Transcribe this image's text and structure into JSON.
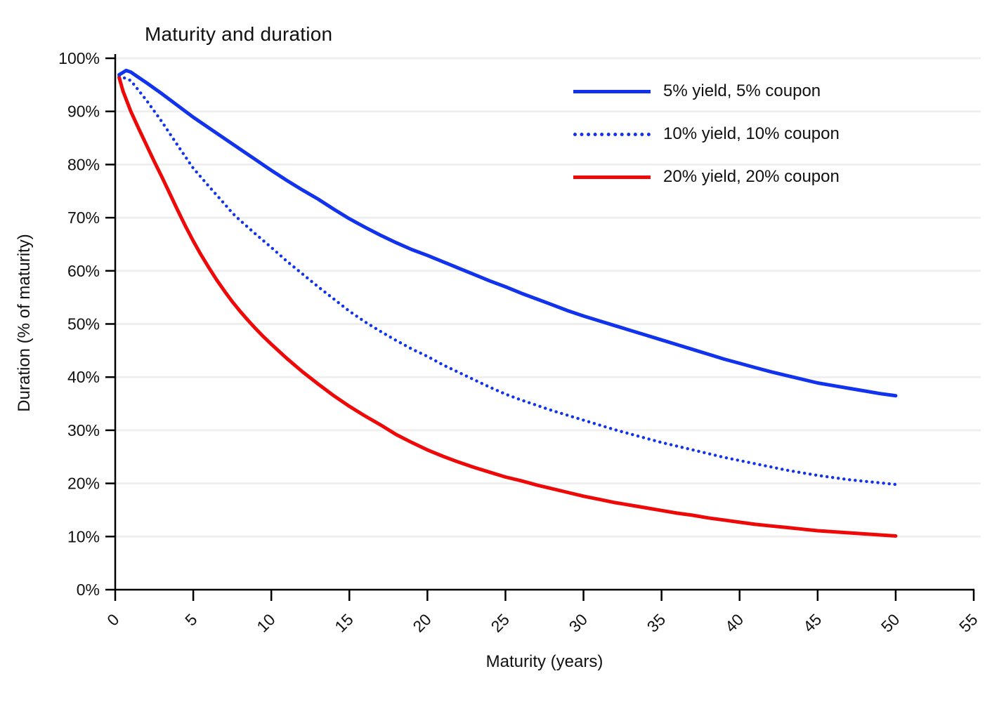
{
  "title": "Maturity and duration",
  "colors": {
    "blue": "#1133ee",
    "red": "#ee0808",
    "grid": "#efefef",
    "axis": "#000000",
    "text": "#111111",
    "background": "#ffffff"
  },
  "chart_data": {
    "type": "line",
    "title": "Maturity and duration",
    "xlabel": "Maturity (years)",
    "ylabel": "Duration (% of maturity)",
    "xlim": [
      0,
      55
    ],
    "ylim": [
      0,
      100
    ],
    "x_ticks": [
      0,
      5,
      10,
      15,
      20,
      25,
      30,
      35,
      40,
      45,
      50,
      55
    ],
    "y_ticks": [
      0,
      10,
      20,
      30,
      40,
      50,
      60,
      70,
      80,
      90,
      100
    ],
    "y_tick_labels": [
      "0%",
      "10%",
      "20%",
      "30%",
      "40%",
      "50%",
      "60%",
      "70%",
      "80%",
      "90%",
      "100%"
    ],
    "grid": "horizontal",
    "legend_position": "upper right",
    "series": [
      {
        "name": "5% yield, 5% coupon",
        "color": "#1133ee",
        "style": "solid",
        "points": [
          [
            0.25,
            96.9
          ],
          [
            0.7,
            97.7
          ],
          [
            1,
            97.4
          ],
          [
            1.5,
            96.4
          ],
          [
            2,
            95.4
          ],
          [
            3,
            93.3
          ],
          [
            4,
            91.1
          ],
          [
            5,
            88.9
          ],
          [
            6,
            86.9
          ],
          [
            7,
            84.9
          ],
          [
            8,
            82.9
          ],
          [
            9,
            80.9
          ],
          [
            10,
            78.9
          ],
          [
            11,
            77.0
          ],
          [
            12,
            75.2
          ],
          [
            13,
            73.5
          ],
          [
            14,
            71.6
          ],
          [
            15,
            69.8
          ],
          [
            16,
            68.2
          ],
          [
            17,
            66.7
          ],
          [
            18,
            65.3
          ],
          [
            19,
            64.0
          ],
          [
            20,
            62.9
          ],
          [
            21,
            61.7
          ],
          [
            22,
            60.5
          ],
          [
            23,
            59.3
          ],
          [
            24,
            58.1
          ],
          [
            25,
            57.0
          ],
          [
            26,
            55.8
          ],
          [
            27,
            54.7
          ],
          [
            28,
            53.6
          ],
          [
            29,
            52.5
          ],
          [
            30,
            51.5
          ],
          [
            31,
            50.6
          ],
          [
            32,
            49.7
          ],
          [
            33,
            48.8
          ],
          [
            34,
            47.9
          ],
          [
            35,
            47.0
          ],
          [
            36,
            46.1
          ],
          [
            37,
            45.2
          ],
          [
            38,
            44.3
          ],
          [
            39,
            43.4
          ],
          [
            40,
            42.6
          ],
          [
            41,
            41.8
          ],
          [
            42,
            41.0
          ],
          [
            43,
            40.3
          ],
          [
            44,
            39.6
          ],
          [
            45,
            38.9
          ],
          [
            46,
            38.4
          ],
          [
            47,
            37.9
          ],
          [
            48,
            37.4
          ],
          [
            49,
            36.9
          ],
          [
            50,
            36.5
          ]
        ]
      },
      {
        "name": "10% yield, 10% coupon",
        "color": "#1133ee",
        "style": "dotted",
        "points": [
          [
            0.25,
            96.7
          ],
          [
            1,
            95.8
          ],
          [
            2,
            92.1
          ],
          [
            3,
            88.0
          ],
          [
            4,
            83.6
          ],
          [
            5,
            79.3
          ],
          [
            6,
            75.9
          ],
          [
            7,
            72.6
          ],
          [
            7.5,
            70.9
          ],
          [
            8,
            69.5
          ],
          [
            9,
            66.9
          ],
          [
            10,
            64.4
          ],
          [
            11,
            61.8
          ],
          [
            12,
            59.4
          ],
          [
            13,
            57.0
          ],
          [
            14,
            54.7
          ],
          [
            15,
            52.4
          ],
          [
            16,
            50.4
          ],
          [
            17,
            48.6
          ],
          [
            18,
            46.9
          ],
          [
            19,
            45.3
          ],
          [
            20,
            43.9
          ],
          [
            21,
            42.3
          ],
          [
            22,
            40.9
          ],
          [
            23,
            39.5
          ],
          [
            24,
            38.1
          ],
          [
            25,
            36.8
          ],
          [
            26,
            35.7
          ],
          [
            27,
            34.7
          ],
          [
            28,
            33.7
          ],
          [
            29,
            32.8
          ],
          [
            30,
            31.9
          ],
          [
            31,
            31.0
          ],
          [
            32,
            30.1
          ],
          [
            33,
            29.3
          ],
          [
            34,
            28.5
          ],
          [
            35,
            27.7
          ],
          [
            36,
            27.0
          ],
          [
            37,
            26.3
          ],
          [
            38,
            25.6
          ],
          [
            39,
            24.9
          ],
          [
            40,
            24.3
          ],
          [
            41,
            23.7
          ],
          [
            42,
            23.1
          ],
          [
            43,
            22.5
          ],
          [
            44,
            22.0
          ],
          [
            45,
            21.5
          ],
          [
            46,
            21.1
          ],
          [
            47,
            20.7
          ],
          [
            48,
            20.4
          ],
          [
            49,
            20.1
          ],
          [
            50,
            19.8
          ]
        ]
      },
      {
        "name": "20% yield, 20% coupon",
        "color": "#ee0808",
        "style": "solid",
        "points": [
          [
            0.25,
            96.4
          ],
          [
            0.5,
            93.8
          ],
          [
            1,
            90.0
          ],
          [
            1.5,
            86.8
          ],
          [
            2,
            83.7
          ],
          [
            2.5,
            80.6
          ],
          [
            3,
            77.6
          ],
          [
            3.5,
            74.5
          ],
          [
            4,
            71.4
          ],
          [
            4.5,
            68.4
          ],
          [
            5,
            65.6
          ],
          [
            5.5,
            63.0
          ],
          [
            6,
            60.6
          ],
          [
            6.5,
            58.3
          ],
          [
            7,
            56.2
          ],
          [
            7.5,
            54.2
          ],
          [
            8,
            52.4
          ],
          [
            8.5,
            50.7
          ],
          [
            9,
            49.1
          ],
          [
            9.5,
            47.6
          ],
          [
            10,
            46.2
          ],
          [
            11,
            43.5
          ],
          [
            12,
            41.0
          ],
          [
            13,
            38.7
          ],
          [
            14,
            36.5
          ],
          [
            15,
            34.5
          ],
          [
            16,
            32.7
          ],
          [
            17,
            31.0
          ],
          [
            18,
            29.2
          ],
          [
            19,
            27.7
          ],
          [
            20,
            26.3
          ],
          [
            21,
            25.1
          ],
          [
            22,
            24.0
          ],
          [
            23,
            23.0
          ],
          [
            24,
            22.1
          ],
          [
            25,
            21.2
          ],
          [
            26,
            20.5
          ],
          [
            27,
            19.7
          ],
          [
            28,
            19.0
          ],
          [
            29,
            18.3
          ],
          [
            30,
            17.6
          ],
          [
            31,
            17.0
          ],
          [
            32,
            16.4
          ],
          [
            33,
            15.9
          ],
          [
            34,
            15.4
          ],
          [
            35,
            14.9
          ],
          [
            36,
            14.4
          ],
          [
            37,
            14.0
          ],
          [
            38,
            13.5
          ],
          [
            39,
            13.1
          ],
          [
            40,
            12.7
          ],
          [
            41,
            12.3
          ],
          [
            42,
            12.0
          ],
          [
            43,
            11.7
          ],
          [
            44,
            11.4
          ],
          [
            45,
            11.1
          ],
          [
            46,
            10.9
          ],
          [
            47,
            10.7
          ],
          [
            48,
            10.5
          ],
          [
            49,
            10.3
          ],
          [
            50,
            10.1
          ]
        ]
      }
    ]
  }
}
